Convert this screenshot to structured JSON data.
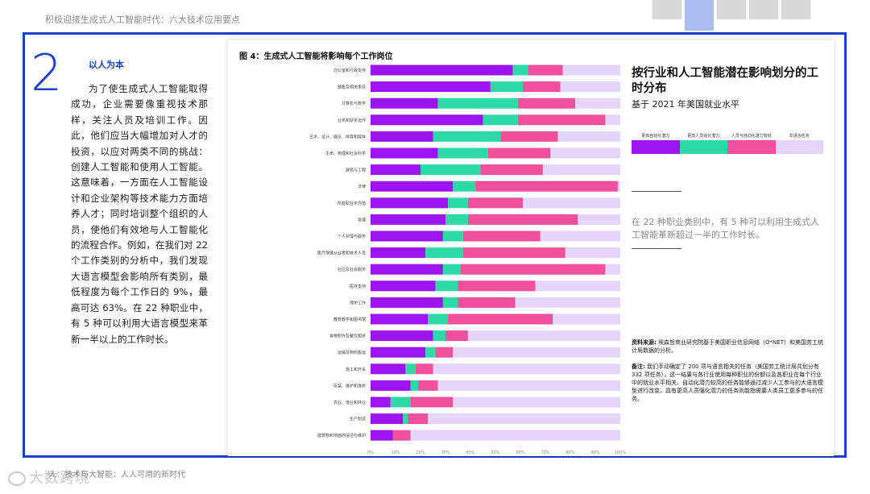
{
  "header": {
    "title": "积极迎接生成式人工智能时代：六大技术应用要点"
  },
  "section": {
    "number": "2",
    "title": "以人为本",
    "body": "为了使生成式人工智能取得成功，企业需要像重视技术那样，关注人员及培训工作。因此，他们应当大幅增加对人才的投资，以应对两类不同的挑战：创建人工智能和使用人工智能。这意味着，一方面在人工智能设计和企业架构等技术能力方面培养人才；同时培训整个组织的人员，使他们有效地与人工智能化的流程合作。例如，在我们对 22 个工作类别的分析中，我们发现大语言模型会影响所有类别，最低程度为每个工作日的 9%，最高可达 63%。在 22 种职业中，有 5 种可以利用大语言模型来革新一半以上的工作时长。"
  },
  "figure": {
    "title": "图 4：生成式人工智能将影响每个工作岗位",
    "right_title": "按行业和人工智能潜在影响划分的工时分布",
    "right_subtitle": "基于 2021 年美国就业水平",
    "quote": "在 22 种职业类别中，有 5 种可以利用生成式人工智能革新超过一半的工作时长。",
    "source_label": "资料来源:",
    "source_text": "埃森哲商业研究院基于美国职业信息网络（O*NET）和美国劳工统计局数据的分析。",
    "note_label": "备注:",
    "note_text": "我们手动确定了 200 项与语言相关的任务（美国劳工统计局共划分有 332 项任务），这一结果与各行业使用每种职业的份额以及各职业在每个行业中的就业水平相关。自动化潜力较高的任务能够通过减少人工参与的大语言模型进行改变。具有更高人员强化潜力的任务则能指需要人类员工更多参与的任务。"
  },
  "colors": {
    "accent": "#1840c9",
    "automation": "#9b15f0",
    "augmentation": "#2ed9a5",
    "lower_potential": "#f1509d",
    "non_language": "#e3d6fa"
  },
  "chart_data": {
    "type": "bar",
    "orientation": "horizontal",
    "stacked": true,
    "legend": "top-right",
    "series_names": [
      "更高自动化潜力",
      "更高人员强化潜力",
      "人员与自动化潜力较低",
      "非语言任务"
    ],
    "xlim": [
      0,
      100
    ],
    "x_ticks": [
      "0%",
      "10%",
      "20%",
      "30%",
      "40%",
      "50%",
      "60%",
      "70%",
      "80%",
      "90%",
      "100%"
    ],
    "categories": [
      "办公室和行政支持",
      "销售及相关事务",
      "计算机与数学",
      "业务和财务运作",
      "艺术、设计、娱乐、体育和媒体",
      "生命、物理和社会科学",
      "建筑与工程",
      "法律",
      "所有职业平均值",
      "管理",
      "个人护理与服务",
      "医疗保健从业者和技术人员",
      "社区及社会服务",
      "医疗支持",
      "保护工作",
      "教育教学和图书馆",
      "食物制作及餐饮相关",
      "运输及物料搬运",
      "施工和开采",
      "安装、维护和维修",
      "农业、渔业和林业",
      "生产制造",
      "建筑物和地面的清洁与维护"
    ],
    "series": [
      {
        "name": "更高自动化潜力",
        "values": [
          57,
          48,
          27,
          45,
          25,
          27,
          20,
          33,
          31,
          30,
          29,
          22,
          29,
          26,
          29,
          23,
          25,
          22,
          14,
          16,
          8,
          13,
          9
        ]
      },
      {
        "name": "更高人员强化潜力",
        "values": [
          6,
          13,
          32,
          14,
          27,
          20,
          24,
          9,
          8,
          9,
          8,
          15,
          7,
          9,
          6,
          8,
          5,
          4,
          4,
          3,
          8,
          2,
          0
        ]
      },
      {
        "name": "人员与自动化潜力较低",
        "values": [
          14,
          15,
          23,
          35,
          23,
          25,
          25,
          57,
          22,
          44,
          31,
          41,
          58,
          31,
          23,
          42,
          9,
          7,
          7,
          8,
          17,
          8,
          7
        ]
      },
      {
        "name": "非语言任务",
        "values": [
          23,
          24,
          18,
          6,
          25,
          28,
          31,
          1,
          39,
          17,
          32,
          22,
          6,
          34,
          42,
          27,
          61,
          67,
          75,
          73,
          67,
          77,
          84
        ]
      }
    ]
  },
  "footer": {
    "text": "人：技术与大智能：人人可用的新时代",
    "watermark": "大数跨境"
  }
}
